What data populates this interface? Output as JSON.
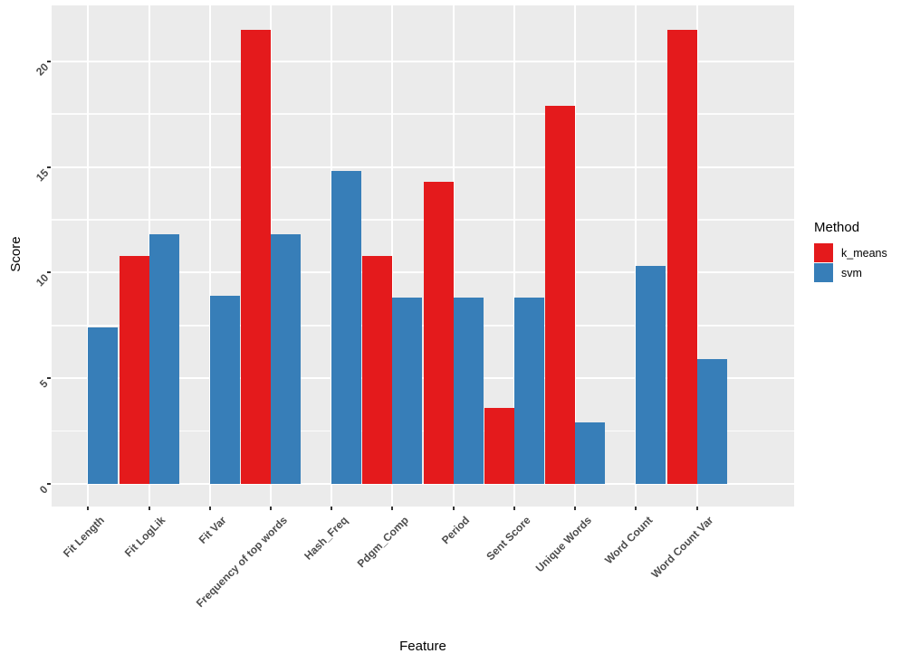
{
  "chart_data": {
    "type": "bar",
    "title": "",
    "xlabel": "Feature",
    "ylabel": "Score",
    "categories": [
      "Fit Length",
      "Fit LogLik",
      "Fit Var",
      "Frequency of top words",
      "Hash_Freq",
      "Pdgm_Comp",
      "Period",
      "Sent Score",
      "Unique Words",
      "Word Count",
      "Word Count Var"
    ],
    "series": [
      {
        "name": "k_means",
        "color": "#E41A1C",
        "values": [
          null,
          10.8,
          null,
          21.5,
          null,
          10.8,
          14.3,
          3.6,
          17.9,
          null,
          21.5
        ]
      },
      {
        "name": "svm",
        "color": "#377EB8",
        "values": [
          7.4,
          11.8,
          8.9,
          11.8,
          14.8,
          8.8,
          8.8,
          8.8,
          2.9,
          10.3,
          5.9
        ]
      }
    ],
    "y_ticks": [
      0,
      5,
      10,
      15,
      20
    ],
    "y_minor_step": 2.5,
    "ylim": [
      0,
      22.6
    ],
    "grid": true,
    "legend_position": "right",
    "legend_title": "Method",
    "legend_entries": [
      "k_means",
      "svm"
    ],
    "colors": {
      "panel_bg": "#EBEBEB",
      "grid": "#FFFFFF",
      "axis_text": "#4D4D4D",
      "title_text": "#000000",
      "tick_mark": "#333333"
    }
  }
}
